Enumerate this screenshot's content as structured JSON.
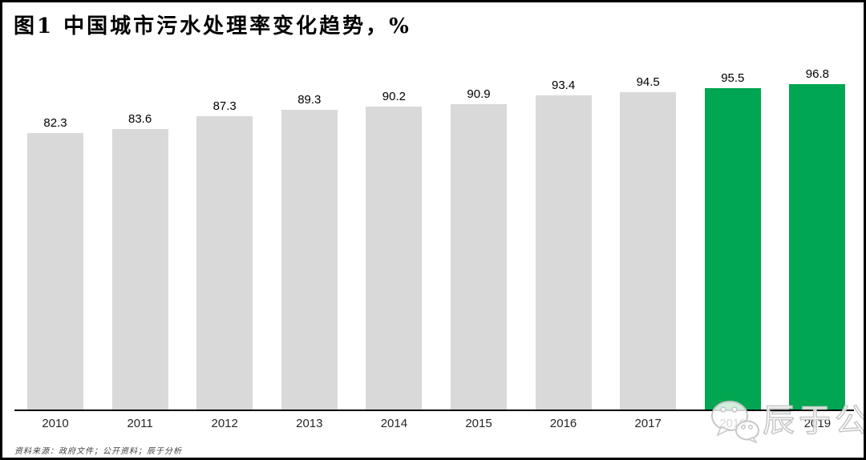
{
  "title": "图1 中国城市污水处理率变化趋势，%",
  "source_note": "资料来源：政府文件；公开资料；辰于分析",
  "watermark": {
    "text": "辰于公司",
    "icon": "wechat-logo"
  },
  "chart_data": {
    "type": "bar",
    "title": "图1 中国城市污水处理率变化趋势，%",
    "categories": [
      "2010",
      "2011",
      "2012",
      "2013",
      "2014",
      "2015",
      "2016",
      "2017",
      "2018",
      "2019"
    ],
    "values": [
      82.3,
      83.6,
      87.3,
      89.3,
      90.2,
      90.9,
      93.4,
      94.5,
      95.5,
      96.8
    ],
    "unit": "%",
    "xlabel": "",
    "ylabel": "",
    "ylim": [
      0,
      100
    ],
    "grid": false,
    "legend": "none",
    "value_labels": true,
    "default_color": "#D9D9D9",
    "highlight_color": "#00A651",
    "bar_colors": [
      "#D9D9D9",
      "#D9D9D9",
      "#D9D9D9",
      "#D9D9D9",
      "#D9D9D9",
      "#D9D9D9",
      "#D9D9D9",
      "#D9D9D9",
      "#00A651",
      "#00A651"
    ]
  }
}
